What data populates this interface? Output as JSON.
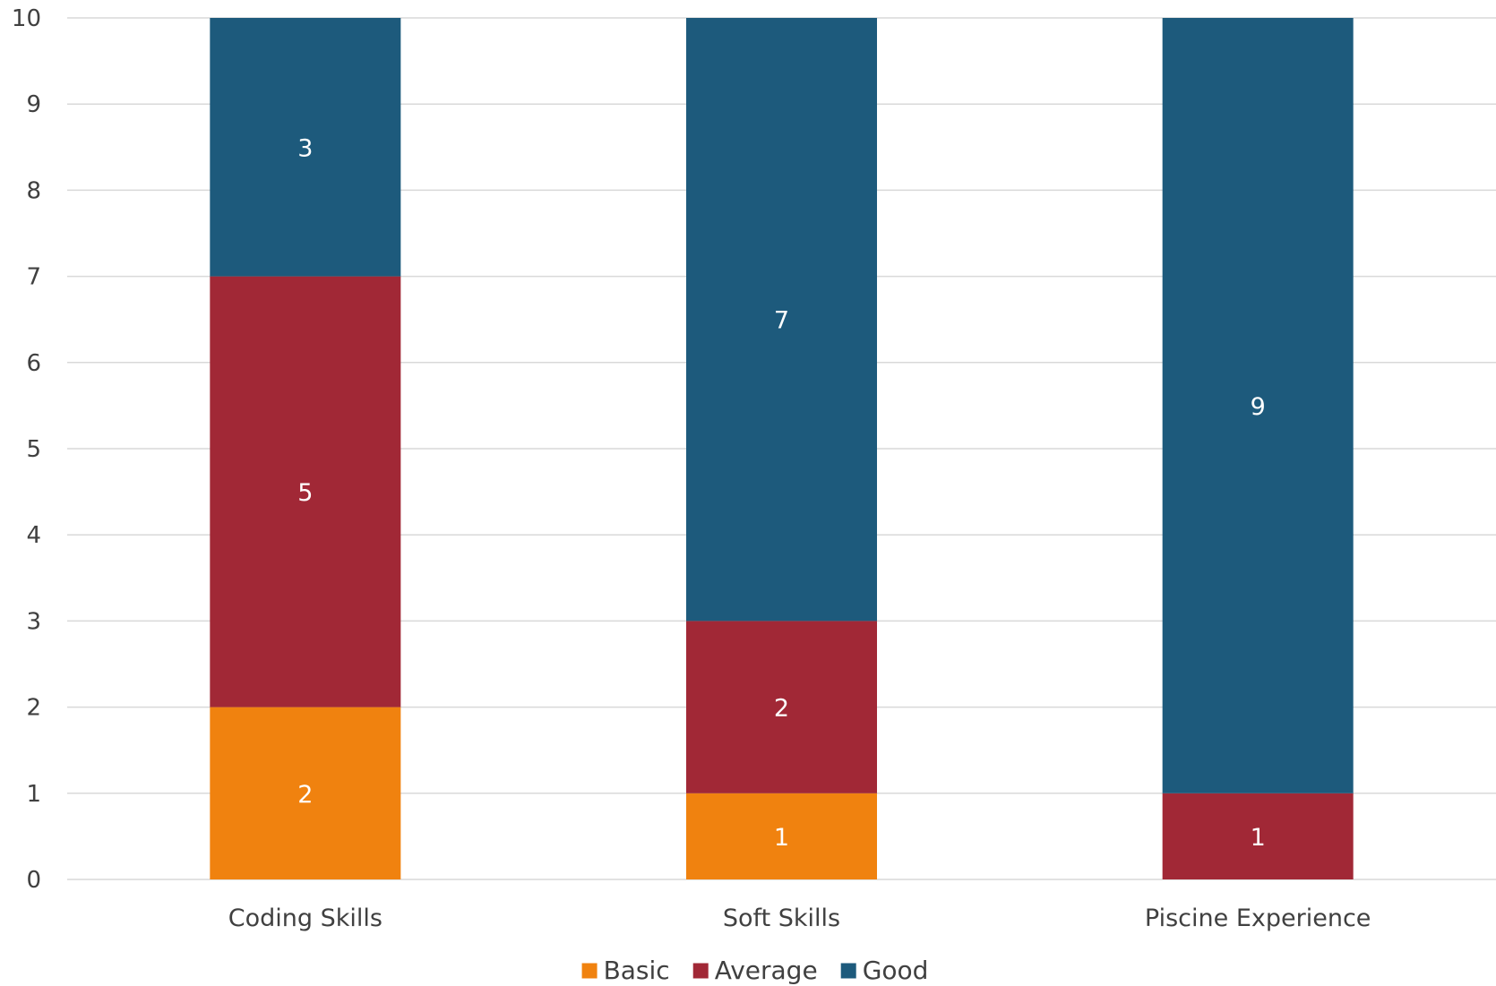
{
  "chart_data": {
    "type": "bar",
    "stacked": true,
    "categories": [
      "Coding Skills",
      "Soft Skills",
      "Piscine Experience"
    ],
    "series": [
      {
        "name": "Basic",
        "color": "#f0820f",
        "values": [
          2,
          1,
          0
        ]
      },
      {
        "name": "Average",
        "color": "#a12836",
        "values": [
          5,
          2,
          1
        ]
      },
      {
        "name": "Good",
        "color": "#1d5a7c",
        "values": [
          3,
          7,
          9
        ]
      }
    ],
    "ylim": [
      0,
      10
    ],
    "yticks": [
      0,
      1,
      2,
      3,
      4,
      5,
      6,
      7,
      8,
      9,
      10
    ],
    "grid": true,
    "legend": "bottom",
    "title": "",
    "xlabel": "",
    "ylabel": ""
  }
}
